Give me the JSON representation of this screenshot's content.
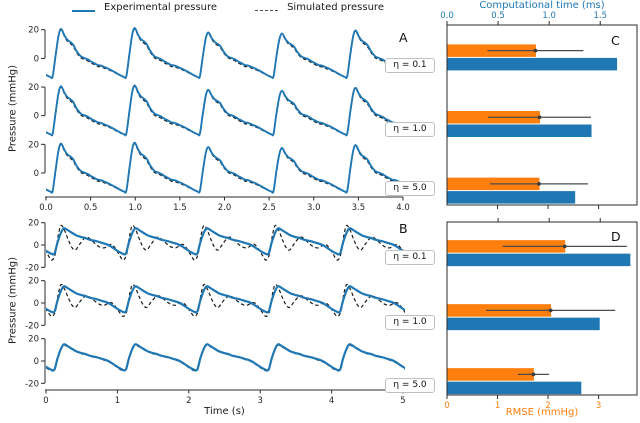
{
  "figure": {
    "legend": [
      {
        "label": "Experimental pressure",
        "color": "#1f77b4",
        "style": "solid"
      },
      {
        "label": "Simulated pressure",
        "color": "#4a4a4a",
        "style": "dashed"
      }
    ],
    "colors": {
      "experimental": "#1f77b4",
      "simulated": "#1a1a1a",
      "comp_time_bar": "#1f77b4",
      "rmse_bar": "#ff7f0e",
      "error_bar": "#4d4d4d",
      "spine": "#2b2b2b",
      "tick_text": "#262626"
    },
    "eta_labels": [
      "η = 0.1",
      "η = 1.0",
      "η = 5.0"
    ]
  },
  "chart_data": [
    {
      "id": "A",
      "type": "line",
      "ylabel": "Pressure (mmHg)",
      "xlim": [
        0,
        4
      ],
      "x_ticks": [
        0,
        0.5,
        1,
        1.5,
        2,
        2.5,
        3,
        3.5,
        4
      ],
      "x_tick_labels": [
        "0.0",
        "0.5",
        "1.0",
        "1.5",
        "2.0",
        "2.5",
        "3.0",
        "3.5",
        "4.0"
      ],
      "ylim": [
        -16,
        24
      ],
      "y_ticks": [
        20,
        0
      ],
      "etas": [
        "η = 0.1",
        "η = 1.0",
        "η = 5.0"
      ],
      "period": 0.825,
      "t0": 0.05,
      "beat_scales": [
        1.0,
        1.03,
        0.88,
        0.85,
        0.95
      ],
      "experimental_beat": [
        [
          0,
          -13
        ],
        [
          0.03,
          -12.5
        ],
        [
          0.07,
          2
        ],
        [
          0.11,
          16
        ],
        [
          0.145,
          20.5
        ],
        [
          0.19,
          16
        ],
        [
          0.23,
          13
        ],
        [
          0.27,
          11.5
        ],
        [
          0.31,
          9.5
        ],
        [
          0.35,
          5.5
        ],
        [
          0.41,
          1.5
        ],
        [
          0.46,
          0.3
        ],
        [
          0.51,
          -0.8
        ],
        [
          0.55,
          -2.2
        ],
        [
          0.59,
          -3.2
        ],
        [
          0.64,
          -4.6
        ],
        [
          0.69,
          -5.1
        ],
        [
          0.74,
          -6.2
        ],
        [
          0.81,
          -7.8
        ],
        [
          0.88,
          -9.8
        ],
        [
          0.95,
          -11.8
        ],
        [
          1,
          -13
        ]
      ],
      "simulated_beat": [
        [
          0,
          -13
        ],
        [
          0.03,
          -12.6
        ],
        [
          0.07,
          1
        ],
        [
          0.11,
          15.5
        ],
        [
          0.145,
          19.9
        ],
        [
          0.19,
          15.2
        ],
        [
          0.23,
          12
        ],
        [
          0.27,
          10.3
        ],
        [
          0.31,
          8.3
        ],
        [
          0.35,
          4.5
        ],
        [
          0.41,
          0.5
        ],
        [
          0.46,
          -0.7
        ],
        [
          0.51,
          -1.8
        ],
        [
          0.55,
          -3.2
        ],
        [
          0.59,
          -4.2
        ],
        [
          0.64,
          -5.6
        ],
        [
          0.69,
          -6
        ],
        [
          0.74,
          -7
        ],
        [
          0.81,
          -8.4
        ],
        [
          0.88,
          -10.2
        ],
        [
          0.95,
          -12
        ],
        [
          1,
          -13
        ]
      ]
    },
    {
      "id": "B",
      "type": "line",
      "ylabel": "Pressure (mmHg)",
      "xlabel": "Time (s)",
      "xlim": [
        0,
        5
      ],
      "x_ticks": [
        0,
        1,
        2,
        3,
        4,
        5
      ],
      "x_tick_labels": [
        "0",
        "1",
        "2",
        "3",
        "4",
        "5"
      ],
      "ylim": [
        -26,
        26
      ],
      "y_ticks": [
        20,
        0,
        -20
      ],
      "etas": [
        "η = 0.1",
        "η = 1.0",
        "η = 5.0"
      ],
      "period": 1.0,
      "t0": 0.08,
      "experimental_beat": [
        [
          0,
          -8
        ],
        [
          0.04,
          -7.5
        ],
        [
          0.08,
          2
        ],
        [
          0.13,
          11
        ],
        [
          0.17,
          15
        ],
        [
          0.22,
          13.5
        ],
        [
          0.27,
          11.5
        ],
        [
          0.32,
          9.5
        ],
        [
          0.37,
          8
        ],
        [
          0.42,
          7
        ],
        [
          0.47,
          6.3
        ],
        [
          0.52,
          5
        ],
        [
          0.57,
          4.2
        ],
        [
          0.62,
          3.5
        ],
        [
          0.67,
          2.6
        ],
        [
          0.72,
          1.6
        ],
        [
          0.77,
          0.6
        ],
        [
          0.82,
          -1
        ],
        [
          0.88,
          -3.5
        ],
        [
          0.94,
          -6
        ],
        [
          1,
          -8
        ]
      ],
      "simulated_beats": [
        [
          [
            0,
            -13.5
          ],
          [
            0.05,
            -8
          ],
          [
            0.09,
            8
          ],
          [
            0.13,
            17.5
          ],
          [
            0.18,
            13
          ],
          [
            0.23,
            5
          ],
          [
            0.28,
            -2
          ],
          [
            0.33,
            -4.5
          ],
          [
            0.39,
            0.5
          ],
          [
            0.45,
            5.5
          ],
          [
            0.5,
            7
          ],
          [
            0.56,
            4
          ],
          [
            0.62,
            0.5
          ],
          [
            0.68,
            -2
          ],
          [
            0.74,
            -2.5
          ],
          [
            0.79,
            -0.5
          ],
          [
            0.84,
            0.5
          ],
          [
            0.89,
            -3
          ],
          [
            0.94,
            -8
          ],
          [
            1,
            -13.5
          ]
        ],
        [
          [
            0,
            -12
          ],
          [
            0.05,
            -7.5
          ],
          [
            0.09,
            7.5
          ],
          [
            0.13,
            16.5
          ],
          [
            0.18,
            12.5
          ],
          [
            0.23,
            5
          ],
          [
            0.28,
            -1.5
          ],
          [
            0.33,
            -4
          ],
          [
            0.39,
            0.8
          ],
          [
            0.45,
            5
          ],
          [
            0.5,
            6.5
          ],
          [
            0.56,
            3.8
          ],
          [
            0.62,
            0.8
          ],
          [
            0.68,
            -1.5
          ],
          [
            0.74,
            -2
          ],
          [
            0.79,
            -0.3
          ],
          [
            0.84,
            0.2
          ],
          [
            0.89,
            -3
          ],
          [
            0.94,
            -7.5
          ],
          [
            1,
            -12
          ]
        ],
        [
          [
            0,
            -8.8
          ],
          [
            0.04,
            -7.8
          ],
          [
            0.08,
            1.5
          ],
          [
            0.13,
            11.5
          ],
          [
            0.17,
            14.3
          ],
          [
            0.22,
            12.8
          ],
          [
            0.27,
            11
          ],
          [
            0.32,
            9
          ],
          [
            0.37,
            8.4
          ],
          [
            0.42,
            6.4
          ],
          [
            0.47,
            6.2
          ],
          [
            0.52,
            5.4
          ],
          [
            0.57,
            3.8
          ],
          [
            0.62,
            3.2
          ],
          [
            0.67,
            2.9
          ],
          [
            0.72,
            1
          ],
          [
            0.77,
            0.2
          ],
          [
            0.82,
            -1.6
          ],
          [
            0.88,
            -4
          ],
          [
            0.94,
            -6.8
          ],
          [
            1,
            -8.8
          ]
        ]
      ]
    },
    {
      "id": "C",
      "type": "bar",
      "orientation": "horizontal",
      "top_axis": {
        "label": "Computational time (ms)",
        "color": "#1f77b4",
        "max": 1.86,
        "ticks": [
          0,
          0.5,
          1,
          1.5
        ],
        "tick_labels": [
          "0.0",
          "0.5",
          "1.0",
          "1.5"
        ],
        "labels_visible": true
      },
      "bottom_axis": {
        "label": "",
        "color": "#ff7f0e",
        "max": 3.76,
        "ticks": [
          1,
          2,
          3
        ],
        "tick_labels": [
          "1",
          "2",
          "3"
        ],
        "labels_visible": false
      },
      "groups": [
        {
          "eta": "η = 0.1",
          "rmse": 1.75,
          "rmse_err": 0.95,
          "comp_time": 1.66
        },
        {
          "eta": "η = 1.0",
          "rmse": 1.83,
          "rmse_err": 1.02,
          "comp_time": 1.41
        },
        {
          "eta": "η = 5.0",
          "rmse": 1.82,
          "rmse_err": 0.97,
          "comp_time": 1.25
        }
      ]
    },
    {
      "id": "D",
      "type": "bar",
      "orientation": "horizontal",
      "top_axis": {
        "label": "",
        "color": "#1f77b4",
        "max": 1.86,
        "ticks": [
          0.5,
          1,
          1.5
        ],
        "tick_labels": [
          "0.5",
          "1.0",
          "1.5"
        ],
        "labels_visible": false
      },
      "bottom_axis": {
        "label": "RMSE (mmHg)",
        "color": "#ff7f0e",
        "max": 3.76,
        "ticks": [
          0,
          1,
          2,
          3
        ],
        "tick_labels": [
          "0",
          "1",
          "2",
          "3"
        ],
        "labels_visible": true
      },
      "groups": [
        {
          "eta": "η = 0.1",
          "rmse": 2.33,
          "rmse_err": 1.23,
          "comp_time": 1.79
        },
        {
          "eta": "η = 1.0",
          "rmse": 2.05,
          "rmse_err": 1.28,
          "comp_time": 1.49
        },
        {
          "eta": "η = 5.0",
          "rmse": 1.71,
          "rmse_err": 0.31,
          "comp_time": 1.31
        }
      ]
    }
  ]
}
